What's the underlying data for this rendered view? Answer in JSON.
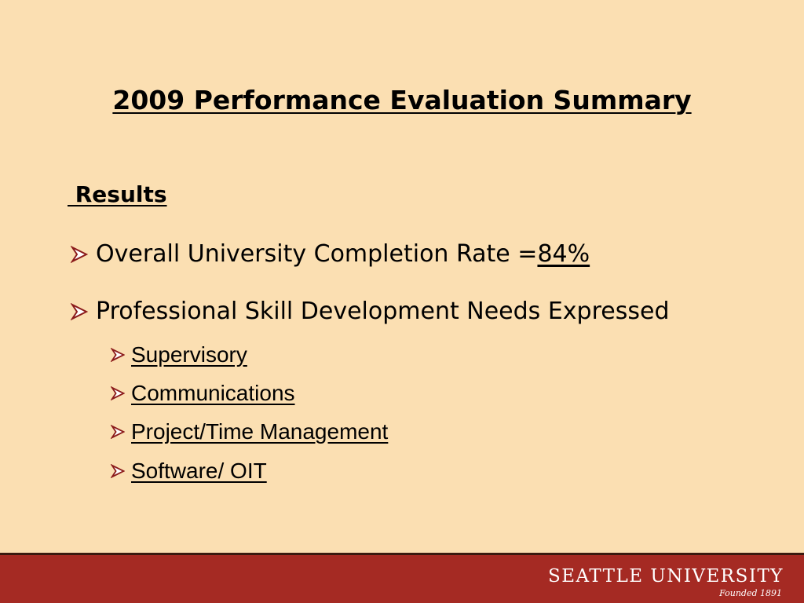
{
  "slide": {
    "title": "2009 Performance Evaluation Summary",
    "section_heading": " Results",
    "bullets": [
      {
        "text": "Overall University Completion Rate = ",
        "highlight": "84%"
      },
      {
        "text": "Professional Skill Development Needs Expressed"
      }
    ],
    "sub_bullets": [
      "Supervisory",
      "Communications",
      "Project/Time Management",
      "Software/ OIT"
    ]
  },
  "footer": {
    "brand": "SEATTLE UNIVERSITY",
    "founded": "Founded 1891"
  },
  "colors": {
    "background": "#fbdfb2",
    "footer_bar": "#a52a23",
    "bullet_arrow": "#8b1a1a"
  },
  "icons": {
    "bullet": "arrow-bullet-icon"
  }
}
